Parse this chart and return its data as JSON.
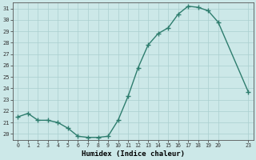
{
  "x": [
    0,
    1,
    2,
    3,
    4,
    5,
    6,
    7,
    8,
    9,
    10,
    11,
    12,
    13,
    14,
    15,
    16,
    17,
    18,
    19,
    20,
    23
  ],
  "y": [
    21.5,
    21.8,
    21.2,
    21.2,
    21.0,
    20.5,
    19.8,
    19.7,
    19.7,
    19.8,
    21.2,
    23.3,
    25.8,
    27.8,
    28.8,
    29.3,
    30.5,
    31.2,
    31.1,
    30.8,
    29.8,
    23.7
  ],
  "xlabel": "Humidex (Indice chaleur)",
  "ylim": [
    19.5,
    31.5
  ],
  "xlim": [
    -0.5,
    23.5
  ],
  "yticks": [
    20,
    21,
    22,
    23,
    24,
    25,
    26,
    27,
    28,
    29,
    30,
    31
  ],
  "xticks": [
    0,
    1,
    2,
    3,
    4,
    5,
    6,
    7,
    8,
    9,
    10,
    11,
    12,
    13,
    14,
    15,
    16,
    17,
    18,
    19,
    20,
    23
  ],
  "xtick_labels": [
    "0",
    "1",
    "2",
    "3",
    "4",
    "5",
    "6",
    "7",
    "8",
    "9",
    "10",
    "11",
    "12",
    "13",
    "14",
    "15",
    "16",
    "17",
    "18",
    "19",
    "20",
    "23"
  ],
  "line_color": "#2e7d6e",
  "marker_color": "#2e7d6e",
  "bg_color": "#cce8e8",
  "grid_color": "#aacfcf",
  "xlabel_color": "#000000"
}
